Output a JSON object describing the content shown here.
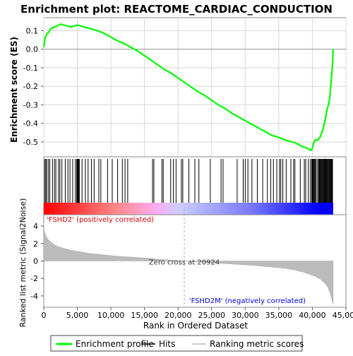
{
  "chart_data": {
    "type": "line",
    "title": "Enrichment plot: REACTOME_CARDIAC_CONDUCTION",
    "es_panel": {
      "ylabel": "Enrichment score (ES)",
      "ylim": [
        -0.58,
        0.17
      ],
      "yticks": [
        0.1,
        0.0,
        -0.1,
        -0.2,
        -0.3,
        -0.4,
        -0.5
      ],
      "ytick_labels": [
        "0.1",
        "0.0",
        "-0.1",
        "-0.2",
        "-0.3",
        "-0.4",
        "-0.5"
      ],
      "grid": true,
      "series": [
        {
          "name": "Enrichment profile",
          "color": "#00ff00",
          "x": [
            0,
            200,
            400,
            700,
            1000,
            1300,
            1600,
            2000,
            2500,
            3000,
            3500,
            4000,
            4500,
            5000,
            5500,
            6000,
            7000,
            8000,
            9000,
            10000,
            11000,
            12000,
            13000,
            14000,
            15000,
            16000,
            17000,
            18000,
            19000,
            20000,
            21000,
            22000,
            23000,
            24000,
            25000,
            26000,
            27000,
            28000,
            29000,
            30000,
            31000,
            32000,
            33000,
            34000,
            35000,
            36000,
            37000,
            37500,
            38000,
            38500,
            39000,
            39500,
            39800,
            40000,
            40200,
            40400,
            40800,
            41200,
            41500,
            41800,
            42000,
            42200,
            42400,
            42600,
            42800,
            43000,
            43100
          ],
          "y": [
            0.01,
            0.06,
            0.08,
            0.09,
            0.11,
            0.115,
            0.12,
            0.125,
            0.135,
            0.13,
            0.125,
            0.12,
            0.125,
            0.13,
            0.125,
            0.12,
            0.11,
            0.1,
            0.085,
            0.065,
            0.045,
            0.03,
            0.01,
            -0.01,
            -0.035,
            -0.06,
            -0.085,
            -0.11,
            -0.13,
            -0.155,
            -0.18,
            -0.205,
            -0.23,
            -0.25,
            -0.275,
            -0.3,
            -0.32,
            -0.345,
            -0.365,
            -0.385,
            -0.405,
            -0.425,
            -0.445,
            -0.465,
            -0.475,
            -0.49,
            -0.5,
            -0.505,
            -0.515,
            -0.525,
            -0.53,
            -0.54,
            -0.545,
            -0.535,
            -0.505,
            -0.49,
            -0.49,
            -0.47,
            -0.44,
            -0.4,
            -0.36,
            -0.32,
            -0.3,
            -0.26,
            -0.17,
            -0.08,
            0.0
          ]
        }
      ]
    },
    "hits_panel": {
      "series": [
        {
          "name": "Hits",
          "color": "#000000",
          "x": [
            150,
            300,
            450,
            700,
            900,
            1300,
            1600,
            1800,
            2200,
            2400,
            2700,
            3200,
            3600,
            3900,
            4300,
            4700,
            4900,
            5000,
            5100,
            5200,
            5300,
            5700,
            6200,
            6600,
            7100,
            7500,
            8200,
            8500,
            9500,
            10200,
            11000,
            11700,
            12100,
            12500,
            16200,
            16400,
            17600,
            17800,
            18900,
            19300,
            19700,
            20500,
            20700,
            21600,
            22500,
            23100,
            24800,
            26400,
            26700,
            28800,
            29700,
            30000,
            30400,
            31000,
            31800,
            32600,
            33300,
            33800,
            34200,
            34700,
            35100,
            35300,
            35600,
            36100,
            36800,
            37200,
            37400,
            38200,
            38800,
            39000,
            39400,
            39700,
            39900,
            40000,
            40100,
            40200,
            40300,
            40400,
            40500,
            40700,
            40900,
            41000,
            41100,
            41200,
            41300,
            41400,
            41500,
            41600,
            41700,
            41800,
            41900,
            42000,
            42100,
            42200,
            42300,
            42400,
            42500,
            42600,
            42700,
            42800,
            42900,
            43000
          ]
        }
      ],
      "color_bar": [
        "#ff0000",
        "#ff8888",
        "#ffaaee",
        "#ccccff",
        "#7777ff",
        "#0000ff"
      ]
    },
    "metric_panel": {
      "ylabel": "Ranked list metric (Signal2Noise)",
      "ylim": [
        -5.3,
        5.3
      ],
      "yticks": [
        4,
        2,
        0,
        -2,
        -4
      ],
      "ytick_labels": [
        "4",
        "2",
        "0",
        "-2",
        "-4"
      ],
      "series": [
        {
          "name": "Ranking metric scores",
          "color": "#bbbbbb",
          "x": [
            0,
            100,
            300,
            600,
            1000,
            1500,
            2000,
            3000,
            4000,
            5000,
            7000,
            9000,
            11000,
            13000,
            15000,
            16000,
            17000,
            19000,
            20924,
            23000,
            26000,
            29000,
            32000,
            34000,
            36000,
            37500,
            38500,
            39500,
            40500,
            41200,
            41800,
            42300,
            42700,
            42900,
            43100
          ],
          "y": [
            4.3,
            3.4,
            2.9,
            2.5,
            2.2,
            1.9,
            1.7,
            1.45,
            1.25,
            1.1,
            0.85,
            0.7,
            0.55,
            0.45,
            0.35,
            0.3,
            0.2,
            0.1,
            0.0,
            -0.1,
            -0.25,
            -0.4,
            -0.55,
            -0.7,
            -0.85,
            -1.05,
            -1.25,
            -1.5,
            -1.8,
            -2.1,
            -2.5,
            -3.0,
            -3.8,
            -4.4,
            -5.0
          ]
        }
      ],
      "annotations": {
        "zero_cross": "Zero cross at 20924",
        "zero_cross_x": 20924,
        "positive": "'FSHD2' (positively correlated)",
        "negative": "'FSHD2M' (negatively correlated)"
      }
    },
    "xlabel": "Rank in Ordered Dataset",
    "xlim": [
      0,
      45000
    ],
    "xticks": [
      0,
      5000,
      10000,
      15000,
      20000,
      25000,
      30000,
      35000,
      40000,
      45000
    ],
    "xtick_labels": [
      "0",
      "5,000",
      "10,000",
      "15,000",
      "20,000",
      "25,000",
      "30,000",
      "35,000",
      "40,000",
      "45,000"
    ],
    "legend": {
      "placement": "bottom",
      "entries": [
        "Enrichment profile",
        "Hits",
        "Ranking metric scores"
      ],
      "colors": [
        "#00ff00",
        "#000000",
        "#bbbbbb"
      ]
    }
  }
}
